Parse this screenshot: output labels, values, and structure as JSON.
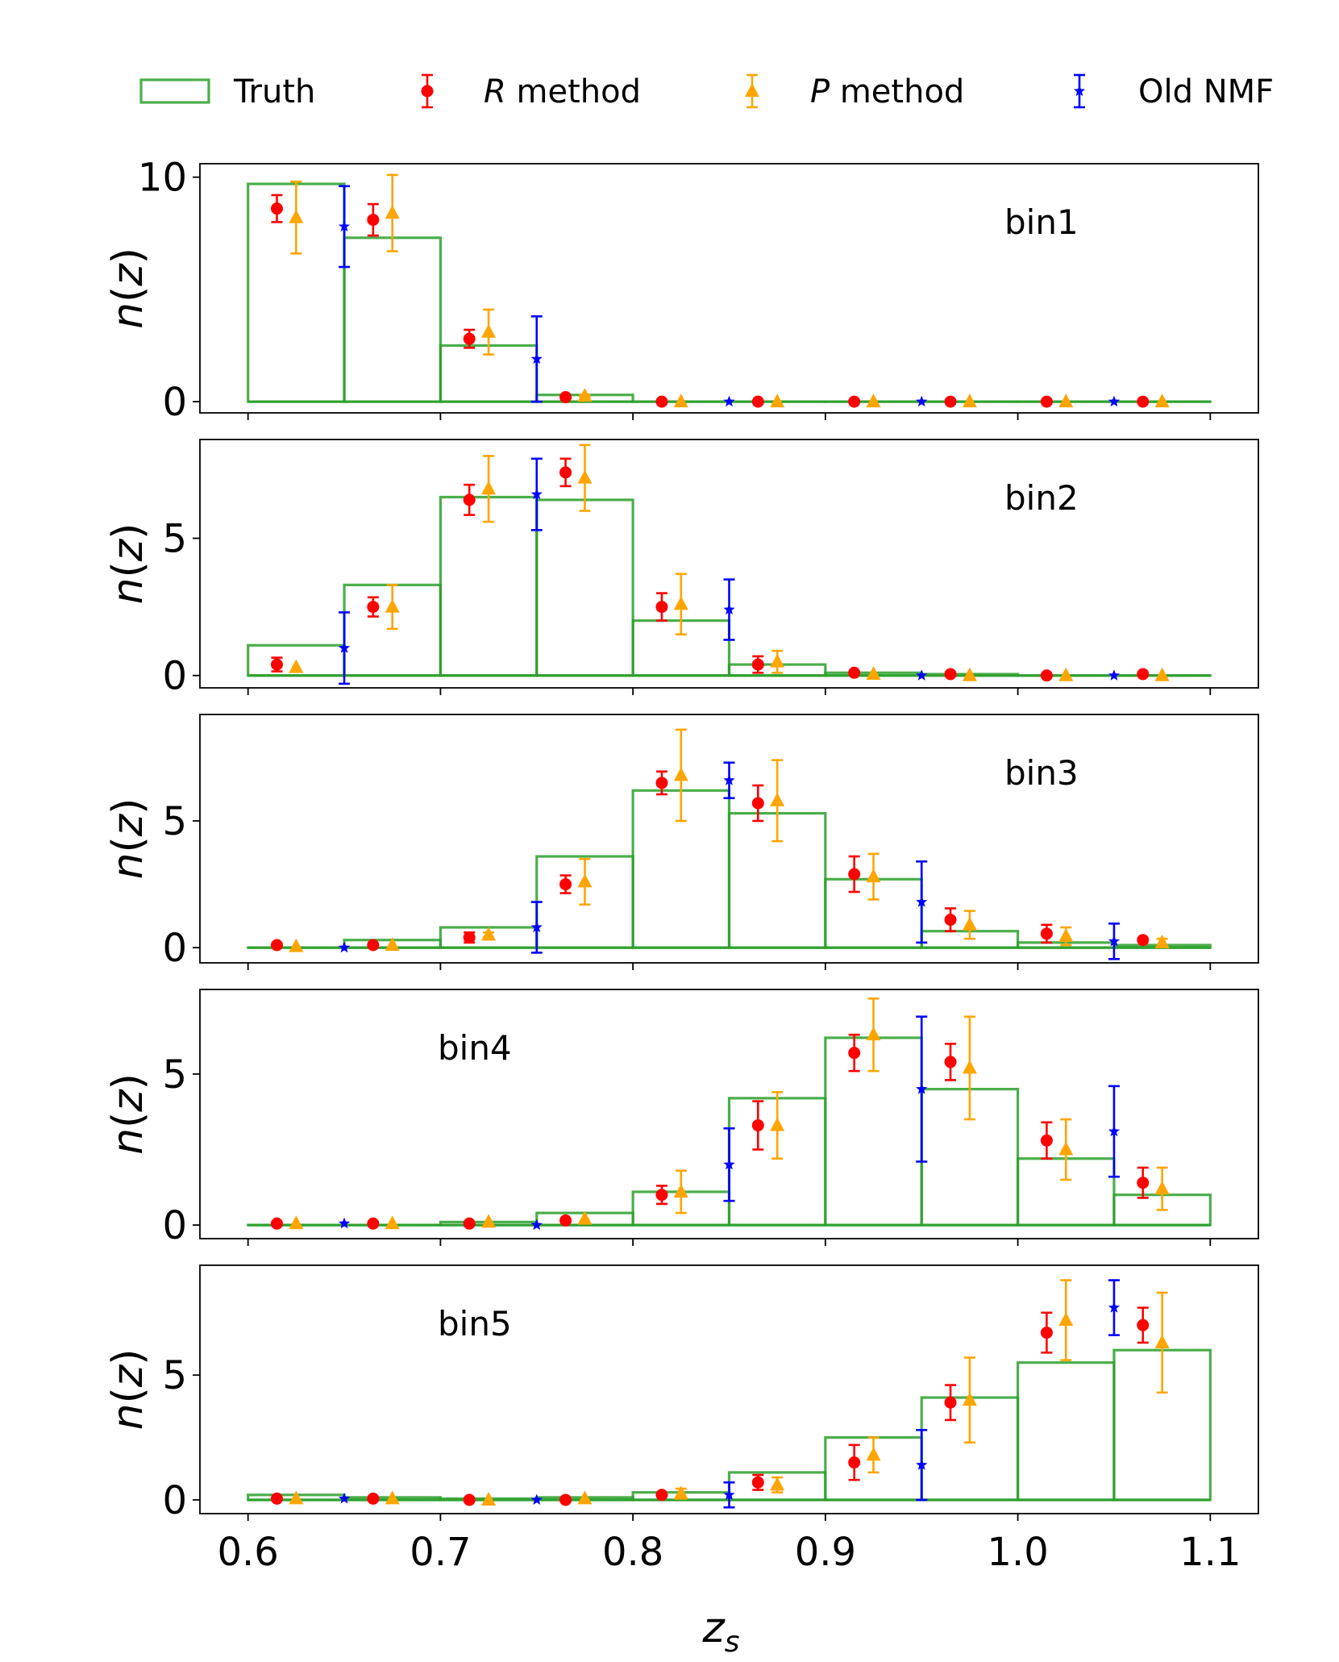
{
  "chart_data": {
    "type": "histogram-with-errorbars",
    "xlabel_main": "z",
    "xlabel_sub": "s",
    "ylabel_main": "n",
    "ylabel_arg": "(z)",
    "xlim": [
      0.575,
      1.125
    ],
    "xticks": [
      0.6,
      0.7,
      0.8,
      0.9,
      1.0,
      1.1
    ],
    "xtick_labels": [
      "0.6",
      "0.7",
      "0.8",
      "0.9",
      "1.0",
      "1.1"
    ],
    "bin_edges": [
      0.6,
      0.65,
      0.7,
      0.75,
      0.8,
      0.85,
      0.9,
      0.95,
      1.0,
      1.05,
      1.1
    ],
    "legend": [
      {
        "key": "truth",
        "label": "Truth",
        "italic_prefix": "",
        "color": "#2ca02c",
        "marker": "rect"
      },
      {
        "key": "r",
        "label": " method",
        "italic_prefix": "R",
        "color": "#ff0000",
        "marker": "circle"
      },
      {
        "key": "p",
        "label": " method",
        "italic_prefix": "P",
        "color": "#ffa500",
        "marker": "triangle"
      },
      {
        "key": "old",
        "label": "Old NMF",
        "italic_prefix": "",
        "color": "#0000ff",
        "marker": "star"
      }
    ],
    "panels": [
      {
        "label": "bin1",
        "label_pos": "upper-right",
        "ylim": [
          -0.5,
          10.6
        ],
        "yticks": [
          0,
          10
        ],
        "ytick_labels": [
          "0",
          "10"
        ],
        "truth": [
          9.7,
          7.3,
          2.5,
          0.3,
          0,
          0,
          0,
          0,
          0,
          0
        ],
        "r": {
          "x": [
            0.615,
            0.665,
            0.715,
            0.765,
            0.815,
            0.865,
            0.915,
            0.965,
            1.015,
            1.065
          ],
          "y": [
            8.6,
            8.1,
            2.8,
            0.2,
            0,
            0,
            0,
            0,
            0,
            0
          ],
          "err": [
            0.6,
            0.7,
            0.4,
            0.05,
            0,
            0,
            0,
            0,
            0,
            0
          ]
        },
        "p": {
          "x": [
            0.625,
            0.675,
            0.725,
            0.775,
            0.825,
            0.875,
            0.925,
            0.975,
            1.025,
            1.075
          ],
          "y": [
            8.2,
            8.4,
            3.1,
            0.25,
            0,
            0,
            0,
            0,
            0,
            0
          ],
          "err": [
            1.6,
            1.7,
            1.0,
            0.05,
            0,
            0,
            0,
            0,
            0,
            0
          ]
        },
        "old": {
          "x": [
            0.65,
            0.75,
            0.85,
            0.95,
            1.05
          ],
          "y": [
            7.8,
            1.9,
            0,
            0,
            0
          ],
          "err": [
            1.8,
            1.9,
            0,
            0,
            0
          ]
        }
      },
      {
        "label": "bin2",
        "label_pos": "upper-right",
        "ylim": [
          -0.45,
          8.6
        ],
        "yticks": [
          0,
          5
        ],
        "ytick_labels": [
          "0",
          "5"
        ],
        "truth": [
          1.1,
          3.3,
          6.5,
          6.4,
          2.0,
          0.4,
          0.1,
          0.05,
          0,
          0
        ],
        "r": {
          "x": [
            0.615,
            0.665,
            0.715,
            0.765,
            0.815,
            0.865,
            0.915,
            0.965,
            1.015,
            1.065
          ],
          "y": [
            0.4,
            2.5,
            6.4,
            7.4,
            2.5,
            0.4,
            0.1,
            0.05,
            0,
            0.05
          ],
          "err": [
            0.25,
            0.35,
            0.55,
            0.5,
            0.5,
            0.3,
            0,
            0,
            0,
            0
          ]
        },
        "p": {
          "x": [
            0.625,
            0.675,
            0.725,
            0.775,
            0.825,
            0.875,
            0.925,
            0.975,
            1.025,
            1.075
          ],
          "y": [
            0.3,
            2.5,
            6.8,
            7.2,
            2.6,
            0.5,
            0.05,
            0,
            0,
            0
          ],
          "err": [
            0,
            0.8,
            1.2,
            1.2,
            1.1,
            0.4,
            0,
            0,
            0,
            0
          ]
        },
        "old": {
          "x": [
            0.65,
            0.75,
            0.85,
            0.95,
            1.05
          ],
          "y": [
            1.0,
            6.6,
            2.4,
            0,
            0
          ],
          "err": [
            1.3,
            1.3,
            1.1,
            0,
            0
          ]
        }
      },
      {
        "label": "bin3",
        "label_pos": "upper-right",
        "ylim": [
          -0.6,
          9.2
        ],
        "yticks": [
          0,
          5
        ],
        "ytick_labels": [
          "0",
          "5"
        ],
        "truth": [
          0,
          0.3,
          0.8,
          3.6,
          6.2,
          5.3,
          2.7,
          0.65,
          0.2,
          0.1
        ],
        "r": {
          "x": [
            0.615,
            0.665,
            0.715,
            0.765,
            0.815,
            0.865,
            0.915,
            0.965,
            1.015,
            1.065
          ],
          "y": [
            0.1,
            0.1,
            0.4,
            2.5,
            6.5,
            5.7,
            2.9,
            1.1,
            0.55,
            0.3
          ],
          "err": [
            0,
            0,
            0.2,
            0.35,
            0.45,
            0.7,
            0.7,
            0.45,
            0.35,
            0
          ]
        },
        "p": {
          "x": [
            0.625,
            0.675,
            0.725,
            0.775,
            0.825,
            0.875,
            0.925,
            0.975,
            1.025,
            1.075
          ],
          "y": [
            0.05,
            0.1,
            0.5,
            2.6,
            6.8,
            5.8,
            2.8,
            0.9,
            0.45,
            0.2
          ],
          "err": [
            0,
            0,
            0.1,
            0.9,
            1.8,
            1.6,
            0.9,
            0.55,
            0.35,
            0.15
          ]
        },
        "old": {
          "x": [
            0.65,
            0.75,
            0.85,
            0.95,
            1.05
          ],
          "y": [
            0,
            0.8,
            6.6,
            1.8,
            0.25
          ],
          "err": [
            0,
            1.0,
            0.7,
            1.6,
            0.7
          ]
        }
      },
      {
        "label": "bin4",
        "label_pos": "upper-left",
        "ylim": [
          -0.45,
          7.8
        ],
        "yticks": [
          0,
          5
        ],
        "ytick_labels": [
          "0",
          "5"
        ],
        "truth": [
          0,
          0,
          0.1,
          0.4,
          1.1,
          4.2,
          6.2,
          4.5,
          2.2,
          1.0
        ],
        "r": {
          "x": [
            0.615,
            0.665,
            0.715,
            0.765,
            0.815,
            0.865,
            0.915,
            0.965,
            1.015,
            1.065
          ],
          "y": [
            0.05,
            0.05,
            0.05,
            0.15,
            1.0,
            3.3,
            5.7,
            5.4,
            2.8,
            1.4
          ],
          "err": [
            0,
            0,
            0,
            0,
            0.3,
            0.8,
            0.6,
            0.6,
            0.6,
            0.5
          ]
        },
        "p": {
          "x": [
            0.625,
            0.675,
            0.725,
            0.775,
            0.825,
            0.875,
            0.925,
            0.975,
            1.025,
            1.075
          ],
          "y": [
            0.05,
            0.05,
            0.1,
            0.2,
            1.1,
            3.3,
            6.3,
            5.2,
            2.5,
            1.2
          ],
          "err": [
            0,
            0,
            0,
            0,
            0.7,
            1.1,
            1.2,
            1.7,
            1.0,
            0.7
          ]
        },
        "old": {
          "x": [
            0.65,
            0.75,
            0.85,
            0.95,
            1.05
          ],
          "y": [
            0.05,
            0,
            2.0,
            4.5,
            3.1
          ],
          "err": [
            0,
            0,
            1.2,
            2.4,
            1.5
          ]
        }
      },
      {
        "label": "bin5",
        "label_pos": "upper-left",
        "ylim": [
          -0.55,
          9.4
        ],
        "yticks": [
          0,
          5
        ],
        "ytick_labels": [
          "0",
          "5"
        ],
        "truth": [
          0.2,
          0.1,
          0.05,
          0.1,
          0.3,
          1.1,
          2.5,
          4.1,
          5.5,
          6.0
        ],
        "r": {
          "x": [
            0.615,
            0.665,
            0.715,
            0.765,
            0.815,
            0.865,
            0.915,
            0.965,
            1.015,
            1.065
          ],
          "y": [
            0.05,
            0.05,
            0,
            0,
            0.2,
            0.7,
            1.5,
            3.9,
            6.7,
            7.0
          ],
          "err": [
            0,
            0,
            0,
            0,
            0,
            0.3,
            0.7,
            0.7,
            0.8,
            0.7
          ]
        },
        "p": {
          "x": [
            0.625,
            0.675,
            0.725,
            0.775,
            0.825,
            0.875,
            0.925,
            0.975,
            1.025,
            1.075
          ],
          "y": [
            0.05,
            0.05,
            0,
            0.05,
            0.25,
            0.6,
            1.8,
            4.0,
            7.2,
            6.3
          ],
          "err": [
            0,
            0,
            0,
            0,
            0.2,
            0.3,
            0.7,
            1.7,
            1.6,
            2.0
          ]
        },
        "old": {
          "x": [
            0.65,
            0.75,
            0.85,
            0.95,
            1.05
          ],
          "y": [
            0.05,
            0,
            0.2,
            1.4,
            7.7
          ],
          "err": [
            0,
            0,
            0.5,
            1.4,
            1.1
          ]
        }
      }
    ]
  }
}
